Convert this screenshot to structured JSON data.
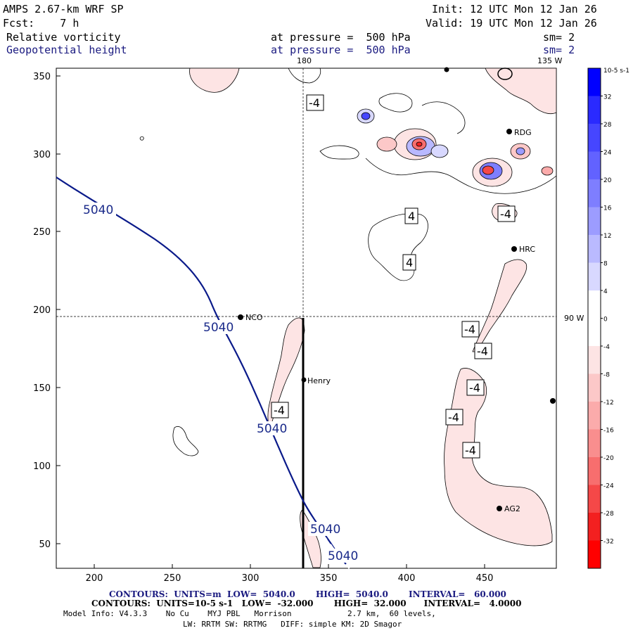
{
  "header": {
    "model": "AMPS 2.67-km WRF SP",
    "init": "Init: 12 UTC Mon 12 Jan 26",
    "fcst": "Fcst:    7 h",
    "valid": "Valid: 19 UTC Mon 12 Jan 26",
    "field1": {
      "name": "Relative vorticity",
      "pressure": "at pressure =  500 hPa",
      "sm": "sm= 2"
    },
    "field2": {
      "name": "Geopotential height",
      "pressure": "at pressure =  500 hPa",
      "sm": "sm= 2"
    }
  },
  "map": {
    "top_labels": [
      "180",
      "135 W"
    ],
    "right_label": "90 W",
    "y_ticks": [
      "350",
      "300",
      "250",
      "200",
      "150",
      "100",
      "50"
    ],
    "x_ticks": [
      "200",
      "250",
      "300",
      "350",
      "400",
      "450"
    ],
    "stations": [
      "NCO",
      "Henry",
      "RDG",
      "HRC",
      "AG2"
    ],
    "height_labels": [
      "5040",
      "5040",
      "5040",
      "5040",
      "5040"
    ],
    "vort_labels": [
      "-4",
      "4",
      "4",
      "-4",
      "-4",
      "-4",
      "-4",
      "-4",
      "-4",
      "-4"
    ]
  },
  "colorbar": {
    "unit": "10-5 s-1",
    "labels": [
      "32",
      "28",
      "24",
      "20",
      "16",
      "12",
      "8",
      "4",
      "0",
      "-4",
      "-8",
      "-12",
      "-16",
      "-20",
      "-24",
      "-28",
      "-32"
    ],
    "colors": [
      "#0000ff",
      "#2a2aff",
      "#4646ff",
      "#6262ff",
      "#7e7eff",
      "#9c9cff",
      "#babaff",
      "#d8d8ff",
      "#ffffff",
      "#ffffff",
      "#fde4e4",
      "#fcc8c8",
      "#fbabab",
      "#f98e8e",
      "#f76e6e",
      "#f54848",
      "#f32020",
      "#ff0000"
    ]
  },
  "footer": {
    "line1": "CONTOURS:  UNITS=m  LOW=  5040.0       HIGH=  5040.0       INTERVAL=   60.000",
    "line2": "CONTOURS:  UNITS=10-5 s-1   LOW=  -32.000       HIGH=  32.000      INTERVAL=   4.0000",
    "line3": "Model Info: V4.3.3    No Cu    MYJ PBL   Morrison            2.7 km,  60 levels,",
    "line4": "LW: RRTM SW: RRTMG   DIFF: simple KM: 2D Smagor"
  }
}
